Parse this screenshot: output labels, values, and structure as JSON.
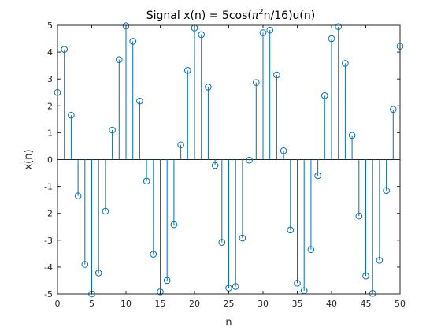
{
  "chart_data": {
    "type": "stem",
    "title": "Signal x(n) = 5cos(",
    "title_pi": "π",
    "title_exp": "2",
    "title_tail": "n/16)u(n)",
    "xlabel": "n",
    "ylabel": "x(n)",
    "xlim": [
      0,
      50
    ],
    "ylim": [
      -5,
      5
    ],
    "xticks": [
      0,
      5,
      10,
      15,
      20,
      25,
      30,
      35,
      40,
      45,
      50
    ],
    "yticks": [
      -5,
      -4,
      -3,
      -2,
      -1,
      0,
      1,
      2,
      3,
      4,
      5
    ],
    "grid": false,
    "colors": {
      "stem": "#0072BD",
      "axis": "#262626"
    },
    "series": [
      {
        "x": [
          0,
          1,
          2,
          3,
          4,
          5,
          6,
          7,
          8,
          9,
          10,
          11,
          12,
          13,
          14,
          15,
          16,
          17,
          18,
          19,
          20,
          21,
          22,
          23,
          24,
          25,
          26,
          27,
          28,
          29,
          30,
          31,
          32,
          33,
          34,
          35,
          36,
          37,
          38,
          39,
          40,
          41,
          42,
          43,
          44,
          45,
          46,
          47,
          48,
          49,
          50
        ],
        "y": [
          2.5,
          4.1,
          1.65,
          -1.35,
          -3.9,
          -5.0,
          -4.22,
          -1.92,
          1.1,
          3.72,
          4.98,
          4.4,
          2.18,
          -0.8,
          -3.52,
          -4.92,
          -4.5,
          -2.42,
          0.55,
          3.32,
          4.9,
          4.65,
          2.7,
          -0.22,
          -3.08,
          -4.78,
          -4.72,
          -2.92,
          -0.02,
          2.87,
          4.72,
          4.82,
          3.15,
          0.33,
          -2.62,
          -4.6,
          -4.88,
          -3.35,
          -0.6,
          2.38,
          4.5,
          4.95,
          3.58,
          0.9,
          -2.1,
          -4.33,
          -4.98,
          -3.75,
          -1.15,
          1.87,
          4.22
        ]
      }
    ]
  }
}
